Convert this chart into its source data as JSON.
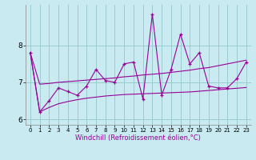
{
  "xlabel": "Windchill (Refroidissement éolien,°C)",
  "background_color": "#c8eaf0",
  "grid_color": "#99cccc",
  "line_color": "#990099",
  "x": [
    0,
    1,
    2,
    3,
    4,
    5,
    6,
    7,
    8,
    9,
    10,
    11,
    12,
    13,
    14,
    15,
    16,
    17,
    18,
    19,
    20,
    21,
    22,
    23
  ],
  "y_main": [
    7.8,
    6.2,
    6.5,
    6.85,
    6.75,
    6.65,
    6.9,
    7.35,
    7.05,
    7.0,
    7.5,
    7.55,
    6.55,
    8.85,
    6.65,
    7.35,
    8.3,
    7.5,
    7.8,
    6.9,
    6.85,
    6.85,
    7.1,
    7.55
  ],
  "y_upper": [
    7.8,
    6.95,
    6.97,
    7.0,
    7.02,
    7.04,
    7.06,
    7.08,
    7.1,
    7.12,
    7.15,
    7.17,
    7.2,
    7.22,
    7.24,
    7.27,
    7.3,
    7.33,
    7.37,
    7.4,
    7.45,
    7.5,
    7.55,
    7.6
  ],
  "y_lower": [
    7.8,
    6.2,
    6.32,
    6.42,
    6.48,
    6.53,
    6.57,
    6.6,
    6.63,
    6.65,
    6.67,
    6.68,
    6.69,
    6.7,
    6.71,
    6.72,
    6.73,
    6.74,
    6.76,
    6.78,
    6.8,
    6.82,
    6.84,
    6.86
  ],
  "ylim": [
    5.85,
    9.1
  ],
  "yticks": [
    6,
    7,
    8
  ],
  "xticks": [
    0,
    1,
    2,
    3,
    4,
    5,
    6,
    7,
    8,
    9,
    10,
    11,
    12,
    13,
    14,
    15,
    16,
    17,
    18,
    19,
    20,
    21,
    22,
    23
  ]
}
